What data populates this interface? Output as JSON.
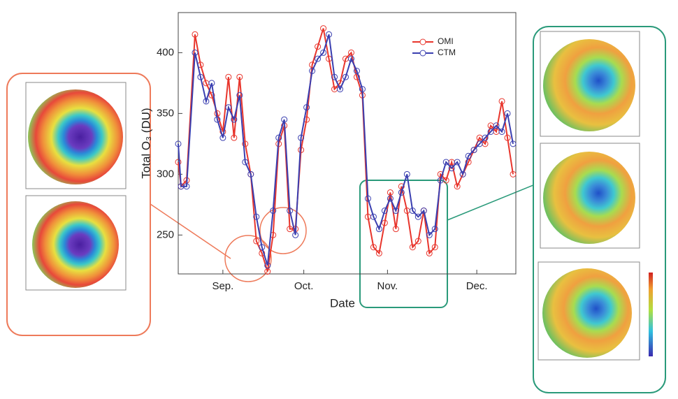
{
  "chart_data": {
    "type": "line",
    "xlabel": "Date",
    "ylabel": "Total O₃ (DU)",
    "x": [
      0,
      1,
      3,
      6,
      8,
      10,
      12,
      14,
      16,
      18,
      20,
      22,
      24,
      26,
      28,
      30,
      32,
      34,
      36,
      38,
      40,
      42,
      44,
      46,
      48,
      50,
      52,
      54,
      56,
      58,
      60,
      62,
      64,
      66,
      68,
      70,
      72,
      74,
      76,
      78,
      80,
      82,
      84,
      86,
      88,
      90,
      92,
      94,
      96,
      98,
      100,
      102,
      104,
      106,
      108,
      110,
      112,
      114,
      116,
      118,
      120
    ],
    "series": [
      {
        "name": "OMI",
        "color": "#e8352c",
        "values": [
          310,
          290,
          295,
          415,
          390,
          375,
          365,
          350,
          335,
          380,
          330,
          380,
          325,
          300,
          245,
          235,
          220,
          250,
          325,
          340,
          255,
          255,
          320,
          345,
          390,
          405,
          420,
          395,
          370,
          375,
          395,
          400,
          380,
          365,
          265,
          240,
          235,
          260,
          285,
          255,
          290,
          270,
          240,
          245,
          270,
          235,
          240,
          300,
          295,
          310,
          290,
          300,
          310,
          320,
          330,
          325,
          340,
          335,
          360,
          330,
          300
        ]
      },
      {
        "name": "CTM",
        "color": "#3a3fb0",
        "values": [
          325,
          290,
          290,
          400,
          380,
          360,
          375,
          345,
          330,
          355,
          345,
          365,
          310,
          300,
          265,
          240,
          225,
          270,
          330,
          345,
          270,
          250,
          330,
          355,
          385,
          395,
          400,
          415,
          380,
          370,
          380,
          395,
          385,
          370,
          280,
          265,
          255,
          270,
          280,
          270,
          285,
          300,
          270,
          265,
          270,
          250,
          255,
          295,
          310,
          305,
          310,
          300,
          315,
          320,
          325,
          330,
          335,
          340,
          335,
          350,
          325
        ]
      }
    ],
    "xlim": [
      0,
      121
    ],
    "xticks": [
      {
        "value": 16,
        "label": "Sep."
      },
      {
        "value": 45,
        "label": "Oct."
      },
      {
        "value": 75,
        "label": "Nov."
      },
      {
        "value": 107,
        "label": "Dec."
      }
    ],
    "ylim": [
      218,
      433
    ],
    "yticks": [
      250,
      300,
      350,
      400
    ],
    "legend": "upper right"
  }
}
